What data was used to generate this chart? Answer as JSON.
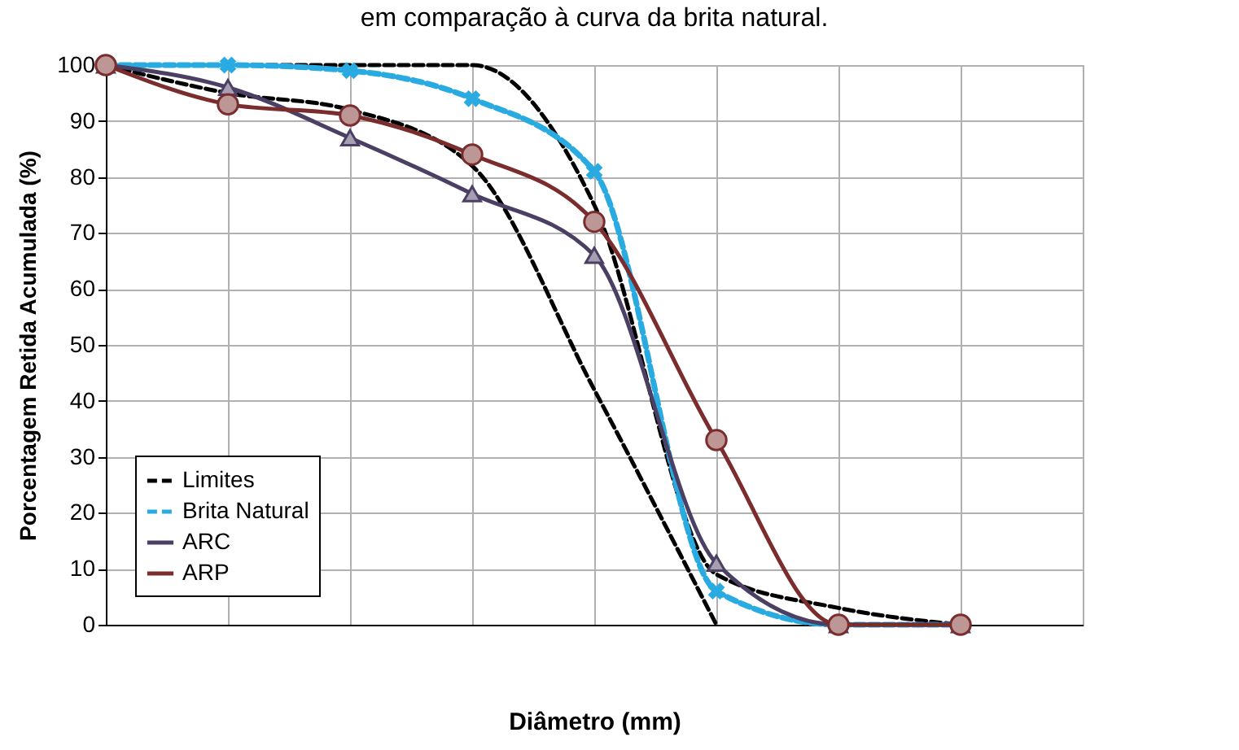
{
  "chart_data": {
    "type": "line",
    "title": "em comparação à curva da brita natural.",
    "xlabel": "Diâmetro (mm)",
    "ylabel": "Porcentagem Retida Acumulada (%)",
    "categories": [
      null,
      null,
      null,
      null,
      null,
      null,
      null,
      null
    ],
    "series": [
      {
        "name": "Limites",
        "color": "#000000",
        "line_style": "dashed",
        "marker": "none",
        "values": [
          100,
          95,
          92,
          82,
          42,
          0,
          null,
          null
        ]
      },
      {
        "color": "#000000",
        "line_style": "dashed",
        "marker": "none",
        "values": [
          100,
          100,
          100,
          100,
          75,
          9,
          3,
          0
        ]
      },
      {
        "name": "Brita Natural",
        "color": "#29abe2",
        "line_style": "dashed",
        "marker": "cross",
        "values": [
          100,
          100,
          99,
          94,
          81,
          6,
          0,
          0
        ]
      },
      {
        "name": "ARC",
        "color": "#4b3f63",
        "line_style": "solid",
        "marker": "triangle",
        "values": [
          100,
          96,
          87,
          77,
          66,
          11,
          0,
          0
        ]
      },
      {
        "name": "ARP",
        "color": "#7b2c2c",
        "line_style": "solid",
        "marker": "circle",
        "values": [
          100,
          93,
          91,
          84,
          72,
          33,
          0,
          0
        ]
      }
    ],
    "ylim": [
      0,
      100
    ],
    "yticks": [
      0,
      10,
      20,
      30,
      40,
      50,
      60,
      70,
      80,
      90,
      100
    ],
    "grid": true,
    "legend": "bottom left"
  }
}
